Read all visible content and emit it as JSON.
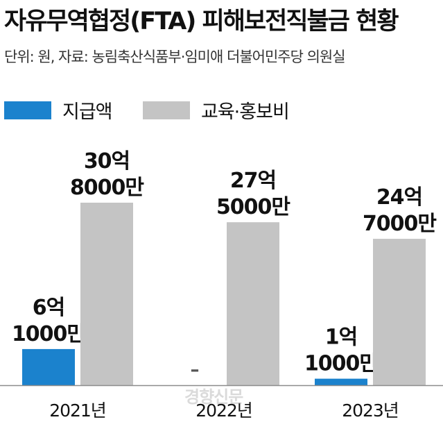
{
  "title": "자유무역협정(FTA) 피해보전직불금 현황",
  "subtitle": "단위: 원, 자료: 농림축산식품부·임미애 더불어민주당 의원실",
  "watermark": "경향신문",
  "colors": {
    "payment": "#1b82cd",
    "promotion": "#c4c4c4",
    "baseline": "#8c8c8c",
    "text": "#111111"
  },
  "chart_data": {
    "type": "bar",
    "categories": [
      "2021년",
      "2022년",
      "2023년"
    ],
    "series": [
      {
        "name": "지급액",
        "values": [
          610000000,
          0,
          110000000
        ],
        "labels": [
          [
            "6억",
            "1000만"
          ],
          [
            "–"
          ],
          [
            "1억",
            "1000만"
          ]
        ]
      },
      {
        "name": "교육·홍보비",
        "values": [
          3080000000,
          2750000000,
          2470000000
        ],
        "labels": [
          [
            "30억",
            "8000만"
          ],
          [
            "27억",
            "5000만"
          ],
          [
            "24억",
            "7000만"
          ]
        ]
      }
    ],
    "legend_position": "top-left",
    "grid": false
  }
}
